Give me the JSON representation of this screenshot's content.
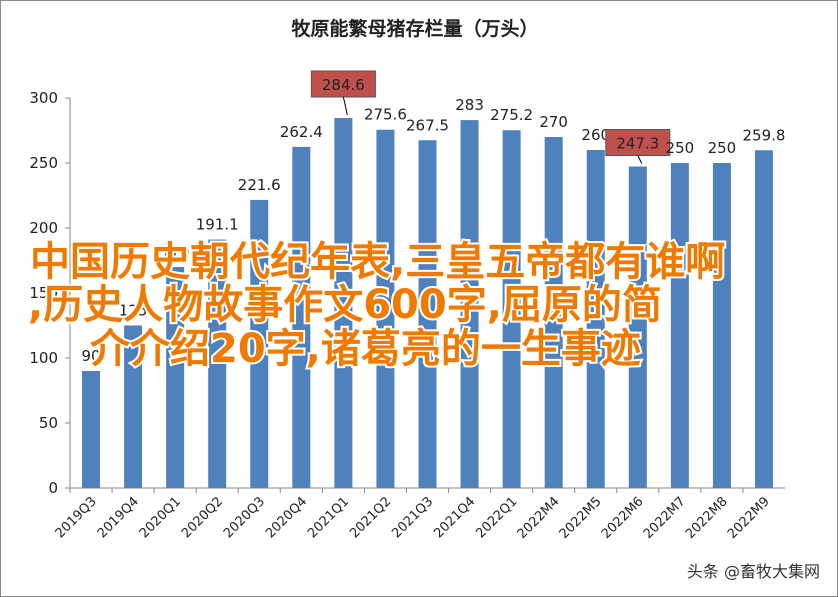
{
  "chart_data": {
    "type": "bar",
    "title": "牧原能繁母猪存栏量（万头）",
    "categories": [
      "2019Q3",
      "2019Q4",
      "2020Q1",
      "2020Q2",
      "2020Q3",
      "2020Q4",
      "2021Q1",
      "2021Q2",
      "2021Q3",
      "2021Q4",
      "2022Q1",
      "2022M4",
      "2022M5",
      "2022M6",
      "2022M7",
      "2022M8",
      "2022M9"
    ],
    "values": [
      90,
      125,
      170,
      191.1,
      221.6,
      262.4,
      284.6,
      275.6,
      267.5,
      283,
      275.2,
      270,
      260,
      247.3,
      250,
      250,
      259.8
    ],
    "color": "#4f81bd",
    "highlight_categories": [
      "2021Q1",
      "2022M6"
    ],
    "highlight_color": "#c0504d",
    "ylim": [
      0,
      300
    ],
    "yticks": [
      0,
      50,
      100,
      150,
      200,
      250,
      300
    ],
    "grid": false
  },
  "overlay": {
    "lines": [
      "中国历史朝代纪年表,三皇五帝都有谁啊",
      ",历史人物故事作文600字,屈原的简",
      "介介绍20字,诸葛亮的一生事迹"
    ],
    "color": "#f07a00"
  },
  "watermark": "头条 @畜牧大集网"
}
